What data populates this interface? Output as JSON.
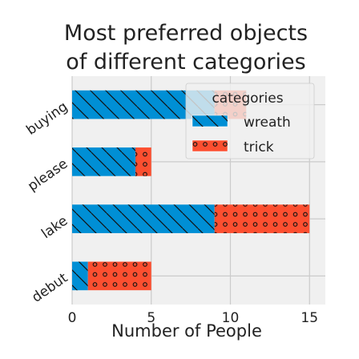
{
  "chart_data": {
    "type": "bar",
    "orientation": "horizontal",
    "stacked": true,
    "title": "Most preferred objects of different categories",
    "title_lines": [
      "Most preferred objects",
      "of different categories"
    ],
    "xlabel": "Number of People",
    "ylabel": "",
    "categories": [
      "buying",
      "please",
      "lake",
      "debut"
    ],
    "series": [
      {
        "name": "wreath",
        "values": [
          9,
          4,
          9,
          1
        ],
        "color": "#008fd5",
        "pattern": "diagonal-hatch"
      },
      {
        "name": "trick",
        "values": [
          2,
          1,
          6,
          4
        ],
        "color": "#fc4f30",
        "pattern": "dots"
      }
    ],
    "xlim": [
      0,
      16
    ],
    "xticks": [
      0,
      5,
      10,
      15
    ],
    "grid": true,
    "legend": {
      "title": "categories",
      "placement": "top-right"
    },
    "colors": {
      "background": "#f0f0f0",
      "grid": "#cbcbcb",
      "text": "#222222"
    }
  }
}
